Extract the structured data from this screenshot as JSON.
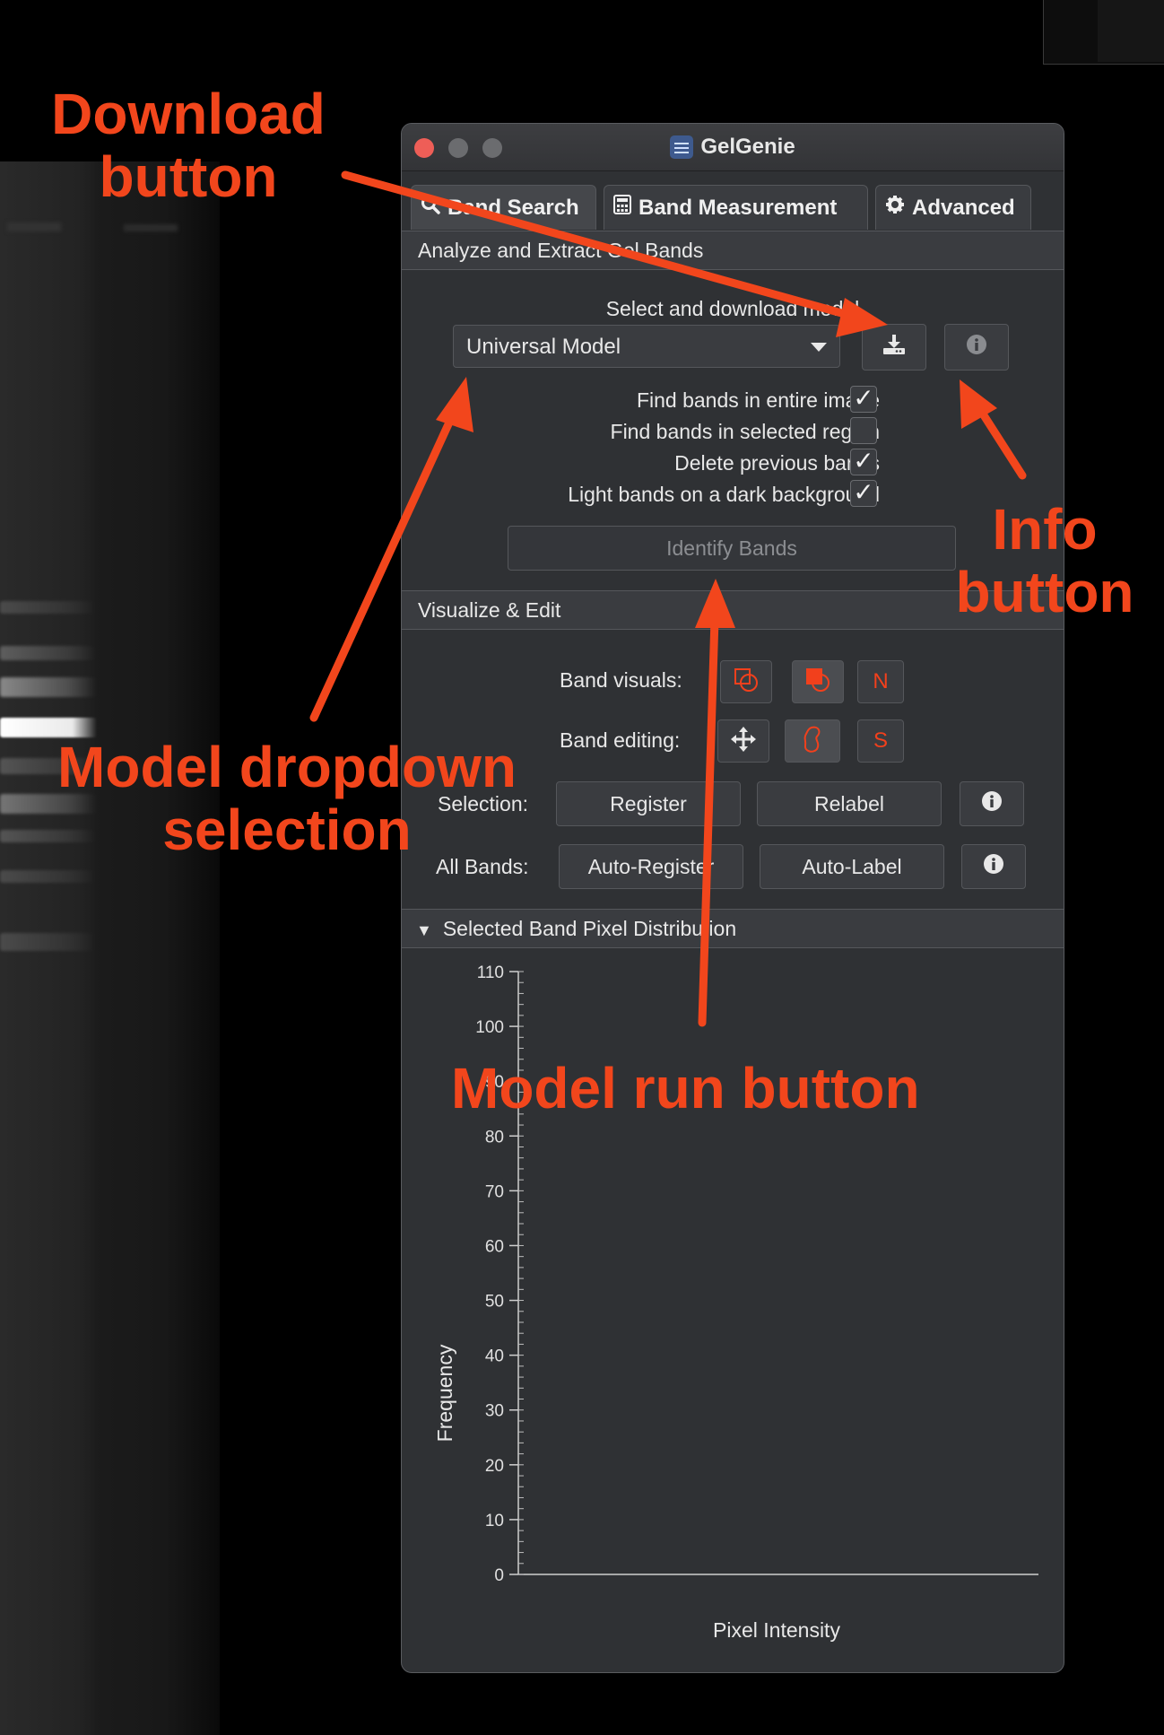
{
  "window": {
    "title": "GelGenie",
    "tabs": [
      {
        "label": "Band Search",
        "icon": "search-icon"
      },
      {
        "label": "Band Measurement",
        "icon": "calculator-icon"
      },
      {
        "label": "Advanced",
        "icon": "gear-icon"
      }
    ]
  },
  "analyze": {
    "header": "Analyze and Extract Gel Bands",
    "model_caption": "Select and download model",
    "model_selected": "Universal Model",
    "download_icon": "download-icon",
    "info_icon": "info-icon",
    "options": [
      {
        "label": "Find bands in entire image",
        "checked": true
      },
      {
        "label": "Find bands in selected region",
        "checked": false
      },
      {
        "label": "Delete previous bands",
        "checked": true
      },
      {
        "label": "Light bands on a dark background",
        "checked": true
      }
    ],
    "identify_label": "Identify Bands"
  },
  "visualize": {
    "header": "Visualize & Edit",
    "band_visuals_label": "Band visuals:",
    "band_editing_label": "Band editing:",
    "visual_n": "N",
    "editing_s": "S",
    "selection_label": "Selection:",
    "register_label": "Register",
    "relabel_label": "Relabel",
    "all_bands_label": "All Bands:",
    "auto_register_label": "Auto-Register",
    "auto_label_label": "Auto-Label",
    "accent_color": "#f2401c"
  },
  "distribution": {
    "header": "Selected Band Pixel Distribution"
  },
  "chart_data": {
    "type": "bar",
    "title": "",
    "xlabel": "Pixel Intensity",
    "ylabel": "Frequency",
    "ylim": [
      0,
      110
    ],
    "yticks": [
      0,
      10,
      20,
      30,
      40,
      50,
      60,
      70,
      80,
      90,
      100,
      110
    ],
    "series": []
  },
  "annotations": {
    "download": "Download\nbutton",
    "info": "Info\nbutton",
    "model_dropdown": "Model dropdown\nselection",
    "model_run": "Model run button",
    "color": "#f2461c"
  }
}
